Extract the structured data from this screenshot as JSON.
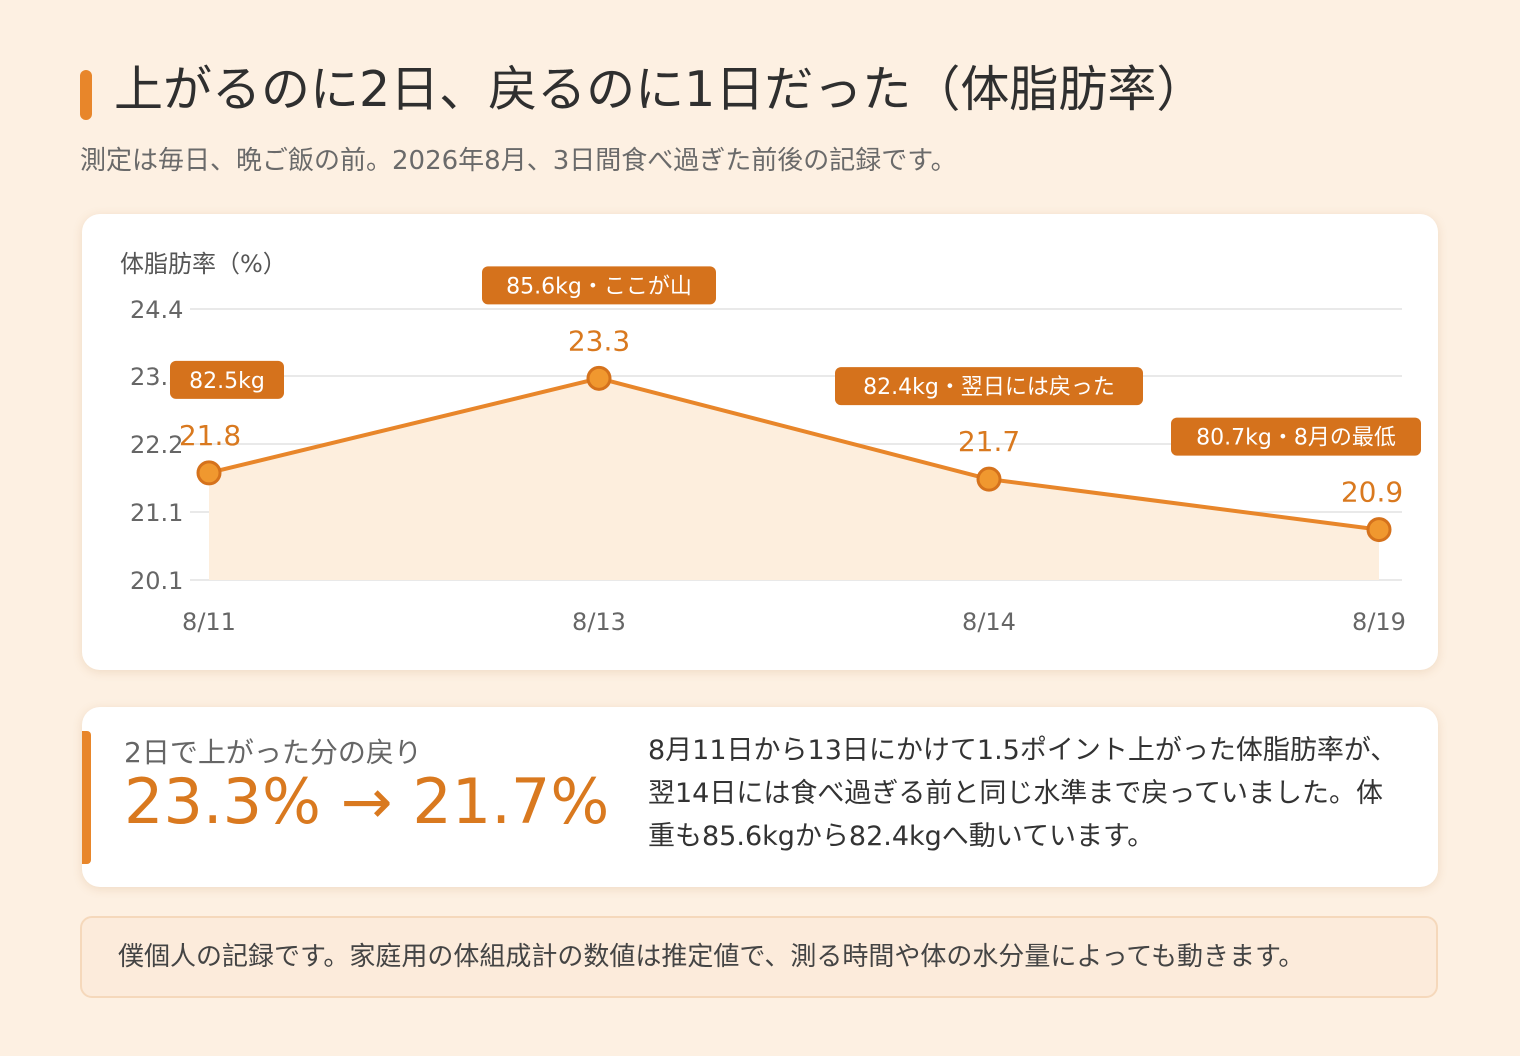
{
  "header": {
    "title": "上がるのに2日、戻るのに1日だった（体脂肪率）",
    "subtitle": "測定は毎日、晩ご飯の前。2026年8月、3日間食べ過ぎた前後の記録です。"
  },
  "chart_data": {
    "type": "line",
    "ylabel": "体脂肪率（%）",
    "ylim": [
      20.1,
      24.4
    ],
    "yticks": [
      "24.4",
      "23.3",
      "22.2",
      "21.1",
      "20.1"
    ],
    "grid": true,
    "area_fill": true,
    "categories": [
      "8/11",
      "8/13",
      "8/14",
      "8/19"
    ],
    "values": [
      21.8,
      23.3,
      21.7,
      20.9
    ],
    "annotations": [
      "82.5kg",
      "85.6kg・ここが山",
      "82.4kg・翌日には戻った",
      "80.7kg・8月の最低"
    ],
    "colors": {
      "line": "#e8862a",
      "area": "#fdeedd",
      "callout": "#d5721c"
    }
  },
  "summary": {
    "label": "2日で上がった分の戻り",
    "value": "23.3% → 21.7%",
    "text": "8月11日から13日にかけて1.5ポイント上がった体脂肪率が、翌14日には食べ過ぎる前と同じ水準まで戻っていました。体重も85.6kgから82.4kgへ動いています。"
  },
  "note": "僕個人の記録です。家庭用の体組成計の数値は推定値で、測る時間や体の水分量によっても動きます。"
}
